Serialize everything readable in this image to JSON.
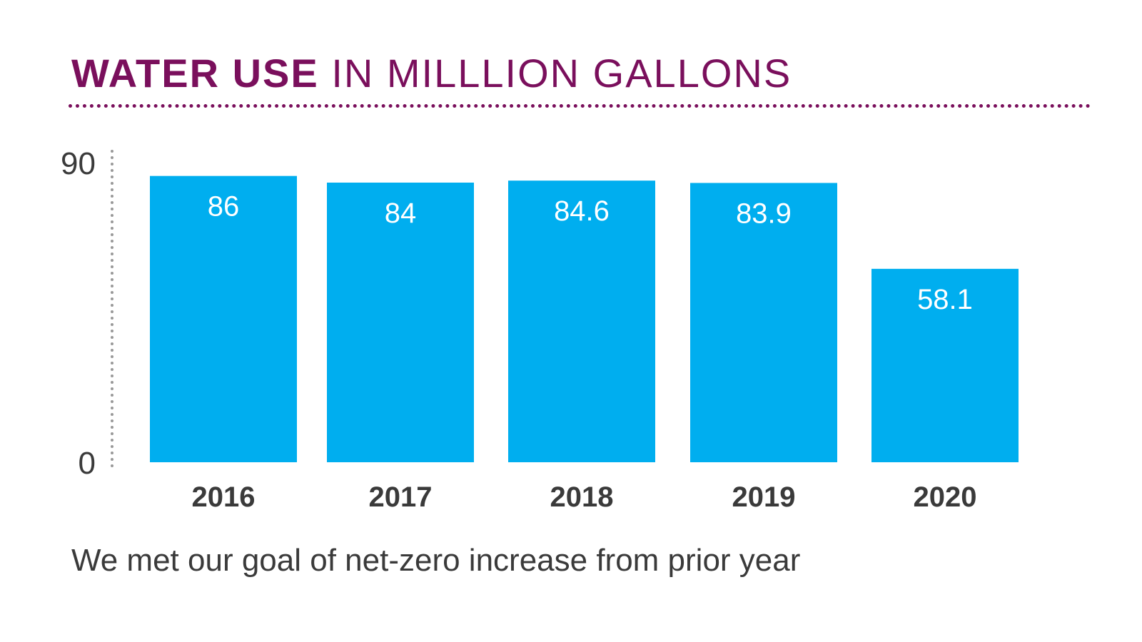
{
  "title": {
    "strong": "WATER USE",
    "light": "IN MILLLION GALLONS"
  },
  "caption": "We met our goal of net-zero increase from prior year",
  "colors": {
    "title": "#7a0f5c",
    "bar": "#00aeef",
    "bar_label": "#ffffff",
    "tick_text": "#3a3a3a",
    "axis_dots": "#999999"
  },
  "chart_data": {
    "type": "bar",
    "categories": [
      "2016",
      "2017",
      "2018",
      "2019",
      "2020"
    ],
    "values": [
      86,
      84,
      84.6,
      83.9,
      58.1
    ],
    "value_labels": [
      "86",
      "84",
      "84.6",
      "83.9",
      "58.1"
    ],
    "title": "WATER USE IN MILLLION GALLONS",
    "xlabel": "",
    "ylabel": "",
    "ylim": [
      0,
      90
    ],
    "yticks": [
      "0",
      "90"
    ],
    "grid": false,
    "legend": "none"
  }
}
